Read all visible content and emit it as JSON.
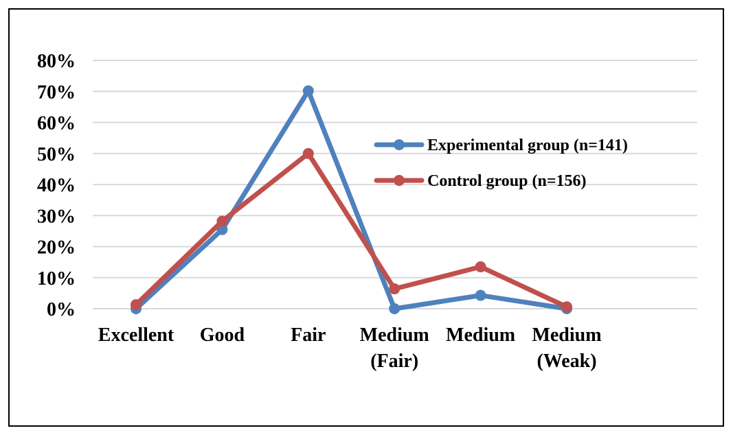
{
  "chart_data": {
    "type": "line",
    "title": "",
    "xlabel": "",
    "ylabel": "",
    "categories": [
      [
        "Excellent"
      ],
      [
        "Good"
      ],
      [
        "Fair"
      ],
      [
        "Medium",
        "(Fair)"
      ],
      [
        "Medium"
      ],
      [
        "Medium",
        "(Weak)"
      ]
    ],
    "ylim": [
      0,
      80
    ],
    "yticks": [
      "0%",
      "10%",
      "20%",
      "30%",
      "40%",
      "50%",
      "60%",
      "70%",
      "80%"
    ],
    "grid": true,
    "legend_position": "right",
    "series": [
      {
        "name": "Experimental group (n=141)",
        "color": "#4F81BD",
        "values": [
          0,
          25.5,
          70.2,
          0,
          4.3,
          0
        ]
      },
      {
        "name": "Control group (n=156)",
        "color": "#C0504D",
        "values": [
          1.3,
          28.2,
          50.0,
          6.4,
          13.5,
          0.6
        ]
      }
    ]
  }
}
